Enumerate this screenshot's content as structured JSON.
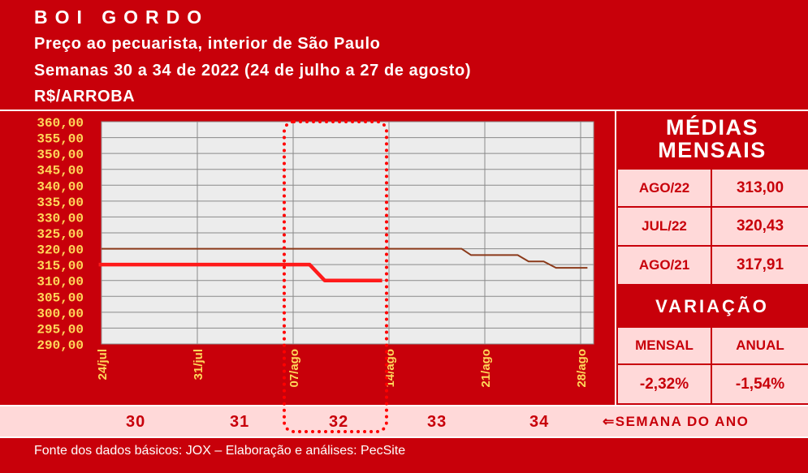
{
  "header": {
    "title": "BOI GORDO",
    "subtitle1": "Preço ao pecuarista, interior de São Paulo",
    "subtitle2": "Semanas 30 a 34 de 2022 (24 de julho a 27 de agosto)",
    "unit": "R$/ARROBA"
  },
  "chart_data": {
    "type": "line",
    "ylim": [
      290,
      360
    ],
    "y_ticks": [
      "360,00",
      "355,00",
      "350,00",
      "345,00",
      "340,00",
      "335,00",
      "330,00",
      "325,00",
      "320,00",
      "315,00",
      "310,00",
      "305,00",
      "300,00",
      "295,00",
      "290,00"
    ],
    "x_labels": [
      "24/jul",
      "31/jul",
      "07/ago",
      "14/ago",
      "21/ago",
      "28/ago"
    ],
    "x_days": [
      0,
      7,
      14,
      21,
      28,
      35
    ],
    "grid": "on",
    "series": [
      {
        "color": "#ff1a1a",
        "points": [
          [
            -0.2,
            315
          ],
          [
            15.2,
            315
          ],
          [
            16.3,
            310
          ],
          [
            20.5,
            310
          ]
        ]
      },
      {
        "color": "#8b3a1a",
        "points": [
          [
            0,
            320
          ],
          [
            26.3,
            320
          ],
          [
            27,
            318
          ],
          [
            30.4,
            318
          ],
          [
            31.2,
            316
          ],
          [
            32.3,
            316
          ],
          [
            33.2,
            314
          ],
          [
            35.5,
            314
          ]
        ]
      }
    ]
  },
  "medias": {
    "title_line1": "MÉDIAS",
    "title_line2": "MENSAIS",
    "rows": [
      {
        "label": "AGO/22",
        "value": "313,00"
      },
      {
        "label": "JUL/22",
        "value": "320,43"
      },
      {
        "label": "AGO/21",
        "value": "317,91"
      }
    ]
  },
  "variacao": {
    "title": "VARIAÇÃO",
    "head_mensal": "MENSAL",
    "head_anual": "ANUAL",
    "mensal": "-2,32%",
    "anual": "-1,54%"
  },
  "weeks": {
    "numbers": [
      "30",
      "31",
      "32",
      "33",
      "34"
    ],
    "label": "SEMANA DO ANO",
    "arrow_icon": "left-arrow-icon"
  },
  "footer": {
    "source": "Fonte dos dados básicos: JOX – Elaboração e análises: PecSite"
  },
  "colors": {
    "background_red": "#c8000a",
    "light_pink": "#ffd9d9",
    "tick_label_yellow": "#ffd85a",
    "plot_gray": "#ececec"
  }
}
